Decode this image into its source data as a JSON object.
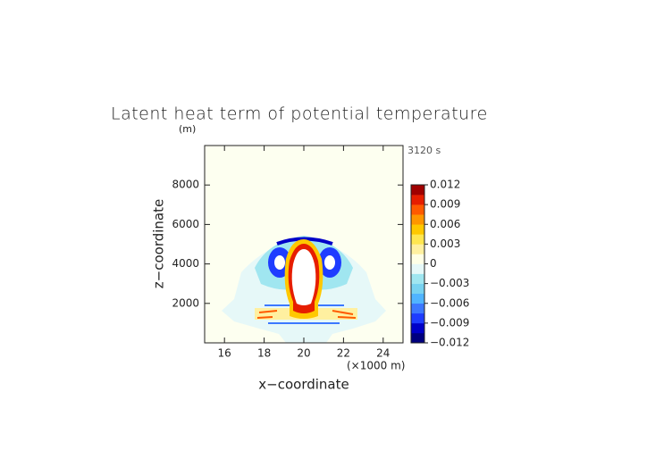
{
  "chart_data": {
    "type": "contour",
    "title": "Latent heat term of potential temperature",
    "y_unit": "(m)",
    "time_label": "3120 s",
    "xlabel": "x−coordinate",
    "ylabel": "z−coordinate",
    "x_unit": "(×1000 m)",
    "xlim": [
      15,
      25
    ],
    "xticks": [
      16,
      18,
      20,
      22,
      24
    ],
    "ylim": [
      0,
      10000
    ],
    "yticks": [
      2000,
      4000,
      6000,
      8000
    ],
    "colorbar_lim": [
      -0.012,
      0.012
    ],
    "colorbar_ticks": [
      {
        "value": -0.012,
        "label": "−0.012"
      },
      {
        "value": -0.009,
        "label": "−0.009"
      },
      {
        "value": -0.006,
        "label": "−0.006"
      },
      {
        "value": -0.003,
        "label": "−0.003"
      },
      0,
      0.003,
      0.006,
      0.009,
      0.012
    ],
    "colorbar_colors": [
      "#00007f",
      "#0000c8",
      "#1e3cff",
      "#3c78ff",
      "#50b4ff",
      "#78d2f0",
      "#a0e6f0",
      "#e6f8f8",
      "#ffffe6",
      "#fff0a0",
      "#ffe650",
      "#ffc800",
      "#ff9600",
      "#ff5a00",
      "#e61e00",
      "#a00000"
    ]
  }
}
